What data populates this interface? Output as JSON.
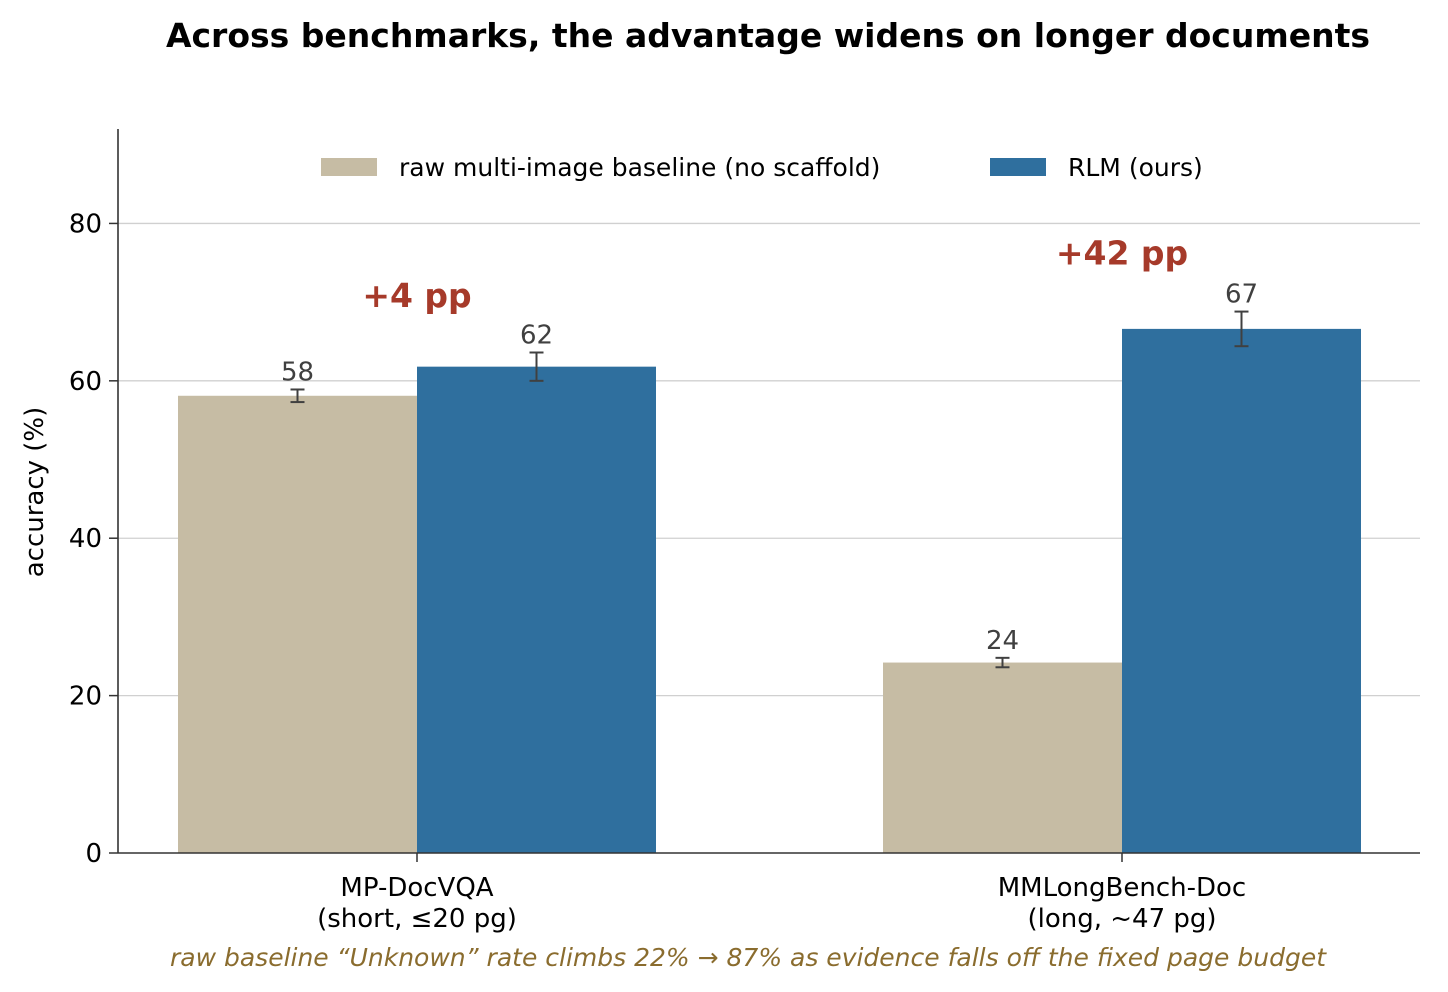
{
  "chart_data": {
    "type": "bar",
    "title": "Across benchmarks, the advantage widens on longer documents",
    "ylabel": "accuracy (%)",
    "xlabel": "",
    "ylim": [
      0,
      92
    ],
    "yticks": [
      0,
      20,
      40,
      60,
      80
    ],
    "grid": "y",
    "legend_position": "top-center",
    "categories": [
      [
        "MP-DocVQA",
        "(short, ≤20 pg)"
      ],
      [
        "MMLongBench-Doc",
        "(long, ~47 pg)"
      ]
    ],
    "series": [
      {
        "name": "raw multi-image baseline (no scaffold)",
        "color": "#c6bca4",
        "values": [
          58.1,
          24.2
        ],
        "errors": [
          0.8,
          0.6
        ],
        "labels": [
          "58",
          "24"
        ]
      },
      {
        "name": "RLM (ours)",
        "color": "#2f6f9e",
        "values": [
          61.8,
          66.6
        ],
        "errors": [
          1.8,
          2.2
        ],
        "labels": [
          "62",
          "67"
        ]
      }
    ],
    "annotations": [
      {
        "text": "+4 pp",
        "category": 0,
        "y": 70.8,
        "color": "#a63a2a"
      },
      {
        "text": "+42 pp",
        "category": 1,
        "y": 76.2,
        "color": "#a63a2a"
      }
    ],
    "footnote": "raw baseline “Unknown” rate climbs 22% → 87% as evidence falls off the fixed page budget"
  }
}
